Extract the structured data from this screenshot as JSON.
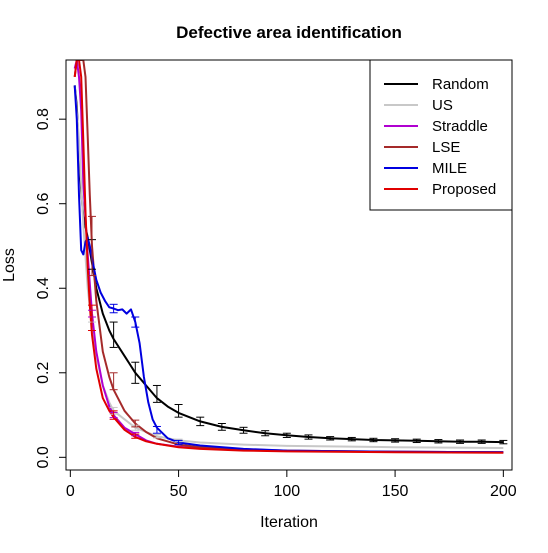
{
  "chart_data": {
    "type": "line",
    "title": "Defective area identification",
    "xlabel": "Iteration",
    "ylabel": "Loss",
    "xlim": [
      -2,
      204
    ],
    "ylim": [
      -0.03,
      0.94
    ],
    "xticks": [
      0,
      50,
      100,
      150,
      200
    ],
    "yticks": [
      0.0,
      0.2,
      0.4,
      0.6,
      0.8
    ],
    "grid": false,
    "legend_position": "top-right",
    "series": [
      {
        "name": "Random",
        "color": "#000000",
        "x": [
          2,
          3,
          4,
          5,
          6,
          8,
          10,
          12,
          15,
          18,
          20,
          25,
          30,
          35,
          40,
          45,
          50,
          60,
          70,
          80,
          90,
          100,
          110,
          120,
          130,
          140,
          150,
          160,
          170,
          180,
          190,
          200
        ],
        "y": [
          0.88,
          0.83,
          0.72,
          0.63,
          0.57,
          0.52,
          0.46,
          0.4,
          0.34,
          0.3,
          0.28,
          0.24,
          0.2,
          0.17,
          0.14,
          0.12,
          0.105,
          0.085,
          0.072,
          0.064,
          0.057,
          0.052,
          0.048,
          0.045,
          0.043,
          0.041,
          0.04,
          0.039,
          0.038,
          0.037,
          0.037,
          0.036
        ],
        "error_x": [
          10,
          20,
          30,
          40,
          50,
          60,
          70,
          80,
          90,
          100,
          110,
          120,
          130,
          140,
          150,
          160,
          170,
          180,
          190,
          200
        ],
        "error_y": [
          0.48,
          0.29,
          0.2,
          0.15,
          0.11,
          0.085,
          0.072,
          0.064,
          0.057,
          0.052,
          0.048,
          0.045,
          0.043,
          0.041,
          0.04,
          0.039,
          0.038,
          0.037,
          0.037,
          0.036
        ],
        "error_half": [
          0.035,
          0.03,
          0.025,
          0.02,
          0.015,
          0.01,
          0.008,
          0.007,
          0.006,
          0.005,
          0.005,
          0.004,
          0.004,
          0.004,
          0.004,
          0.004,
          0.004,
          0.004,
          0.004,
          0.004
        ]
      },
      {
        "name": "US",
        "color": "#c8c8c8",
        "x": [
          2,
          4,
          6,
          8,
          10,
          12,
          15,
          18,
          20,
          25,
          30,
          35,
          40,
          50,
          60,
          80,
          100,
          150,
          200
        ],
        "y": [
          0.88,
          0.75,
          0.55,
          0.4,
          0.31,
          0.24,
          0.17,
          0.13,
          0.11,
          0.09,
          0.07,
          0.06,
          0.05,
          0.04,
          0.035,
          0.03,
          0.027,
          0.024,
          0.022
        ],
        "error_x": [
          10,
          20,
          30,
          40,
          50
        ],
        "error_y": [
          0.31,
          0.11,
          0.07,
          0.05,
          0.04
        ],
        "error_half": [
          0.01,
          0.008,
          0.006,
          0.004,
          0.003
        ]
      },
      {
        "name": "Straddle",
        "color": "#b000d0",
        "x": [
          2,
          3,
          4,
          5,
          6,
          8,
          10,
          12,
          15,
          18,
          20,
          25,
          30,
          35,
          40,
          50,
          60,
          80,
          100,
          150,
          200
        ],
        "y": [
          0.92,
          0.94,
          0.9,
          0.82,
          0.65,
          0.48,
          0.34,
          0.25,
          0.17,
          0.12,
          0.1,
          0.07,
          0.055,
          0.04,
          0.032,
          0.025,
          0.021,
          0.017,
          0.015,
          0.013,
          0.012
        ],
        "error_x": [
          10,
          20,
          30
        ],
        "error_y": [
          0.34,
          0.1,
          0.055
        ],
        "error_half": [
          0.008,
          0.006,
          0.004
        ]
      },
      {
        "name": "LSE",
        "color": "#a52a2a",
        "x": [
          2,
          3,
          4,
          5,
          6,
          7,
          8,
          9,
          10,
          12,
          15,
          18,
          20,
          25,
          30,
          35,
          40,
          50,
          60,
          80,
          100,
          150,
          200
        ],
        "y": [
          0.9,
          0.94,
          0.94,
          0.94,
          0.94,
          0.9,
          0.76,
          0.62,
          0.5,
          0.37,
          0.25,
          0.19,
          0.16,
          0.11,
          0.08,
          0.06,
          0.045,
          0.03,
          0.024,
          0.019,
          0.016,
          0.013,
          0.012
        ],
        "error_x": [
          10,
          20,
          30
        ],
        "error_y": [
          0.5,
          0.18,
          0.08
        ],
        "error_half": [
          0.07,
          0.02,
          0.008
        ]
      },
      {
        "name": "MILE",
        "color": "#0000e0",
        "x": [
          2,
          3,
          4,
          5,
          6,
          7,
          8,
          9,
          10,
          12,
          14,
          16,
          18,
          20,
          22,
          24,
          26,
          28,
          30,
          32,
          34,
          36,
          38,
          40,
          45,
          50,
          60,
          80,
          100,
          150,
          200
        ],
        "y": [
          0.88,
          0.8,
          0.62,
          0.49,
          0.48,
          0.51,
          0.52,
          0.5,
          0.47,
          0.42,
          0.39,
          0.37,
          0.355,
          0.352,
          0.348,
          0.35,
          0.34,
          0.35,
          0.32,
          0.27,
          0.19,
          0.13,
          0.09,
          0.07,
          0.045,
          0.035,
          0.028,
          0.02,
          0.016,
          0.013,
          0.012
        ],
        "error_x": [
          20,
          30,
          40,
          50
        ],
        "error_y": [
          0.352,
          0.32,
          0.065,
          0.035
        ],
        "error_half": [
          0.01,
          0.012,
          0.008,
          0.005
        ]
      },
      {
        "name": "Proposed",
        "color": "#e00000",
        "x": [
          2,
          3,
          4,
          5,
          6,
          7,
          8,
          9,
          10,
          12,
          15,
          18,
          20,
          25,
          30,
          35,
          40,
          50,
          60,
          80,
          100,
          150,
          200
        ],
        "y": [
          0.9,
          0.94,
          0.94,
          0.9,
          0.75,
          0.58,
          0.45,
          0.36,
          0.29,
          0.21,
          0.14,
          0.11,
          0.095,
          0.065,
          0.048,
          0.038,
          0.032,
          0.024,
          0.02,
          0.016,
          0.014,
          0.012,
          0.011
        ],
        "error_x": [
          10,
          20,
          30
        ],
        "error_y": [
          0.33,
          0.1,
          0.05
        ],
        "error_half": [
          0.03,
          0.01,
          0.005
        ]
      }
    ]
  }
}
